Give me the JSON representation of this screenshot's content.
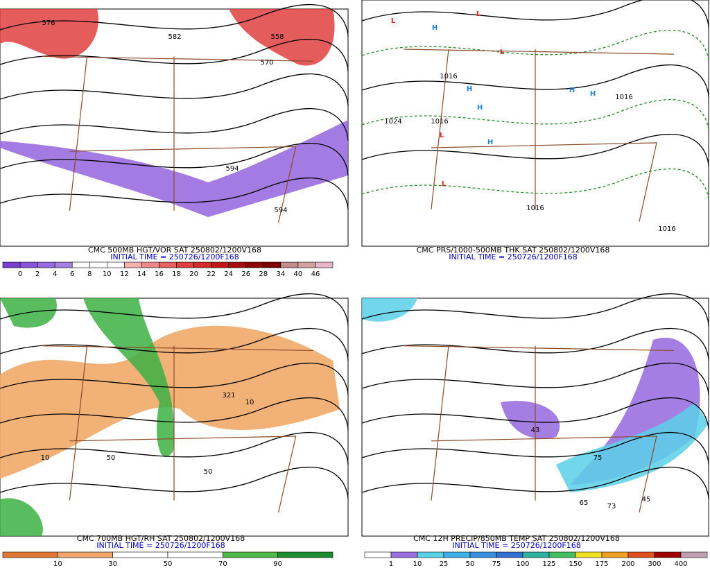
{
  "panels": [
    {
      "title": "CMC 500MB HGT/VOR SAT 250802/1200V168",
      "initial_time": "INITIAL TIME = 250726/1200F168",
      "colorbar": {
        "colors": [
          "#7b3fd0",
          "#8a55d8",
          "#9a6be0",
          "#a67fe3",
          "#ffffff",
          "#ffffff",
          "#ffffff",
          "#f7b0b0",
          "#f08a8a",
          "#e86060",
          "#e04040",
          "#d42a2a",
          "#c21818",
          "#a80c0c",
          "#8c0404",
          "#7a0000",
          "#c08a8a",
          "#d4a0a0",
          "#e8b8c8"
        ],
        "labels": [
          "0",
          "2",
          "4",
          "6",
          "8",
          "10",
          "12",
          "14",
          "16",
          "18",
          "20",
          "22",
          "24",
          "26",
          "28",
          "34",
          "40",
          "46"
        ]
      },
      "map_labels": [
        "576",
        "582",
        "558",
        "570",
        "594",
        "594"
      ]
    },
    {
      "title": "CMC PRS/1000-500MB THK SAT 250802/1200V168",
      "initial_time": "INITIAL TIME = 250726/1200F168",
      "map_labels": [
        "L",
        "L",
        "L",
        "L",
        "L",
        "H",
        "H",
        "H",
        "H",
        "H",
        "H",
        "1016",
        "1024",
        "1016",
        "1016",
        "1016",
        "1016"
      ]
    },
    {
      "title": "CMC 700MB HGT/RH SAT 250802/1200V168",
      "initial_time": "INITIAL TIME = 250726/1200F168",
      "colorbar": {
        "colors": [
          "#e0783a",
          "#f0a868",
          "#ffffff",
          "#ffffff",
          "#50b848",
          "#1e8c2e"
        ],
        "labels": [
          "10",
          "30",
          "50",
          "70",
          "90"
        ]
      },
      "map_labels": [
        "10",
        "321",
        "50",
        "50",
        "10"
      ]
    },
    {
      "title": "CMC 12H PRECIP/850MB TEMP SAT 250802/1200V168",
      "initial_time": "INITIAL TIME = 250726/1200F168",
      "colorbar": {
        "colors": [
          "#ffffff",
          "#9a70e0",
          "#5ad0e8",
          "#40b0e8",
          "#3a90e0",
          "#3070d0",
          "#30b0a0",
          "#40c060",
          "#f0e020",
          "#f0a020",
          "#e05020",
          "#a00000",
          "#c0a0b0"
        ],
        "labels": [
          "1",
          "10",
          "25",
          "50",
          "75",
          "100",
          "125",
          "150",
          "175",
          "200",
          "300",
          "400"
        ]
      },
      "map_labels": [
        "43",
        "75",
        "65",
        "73",
        "45"
      ]
    }
  ]
}
